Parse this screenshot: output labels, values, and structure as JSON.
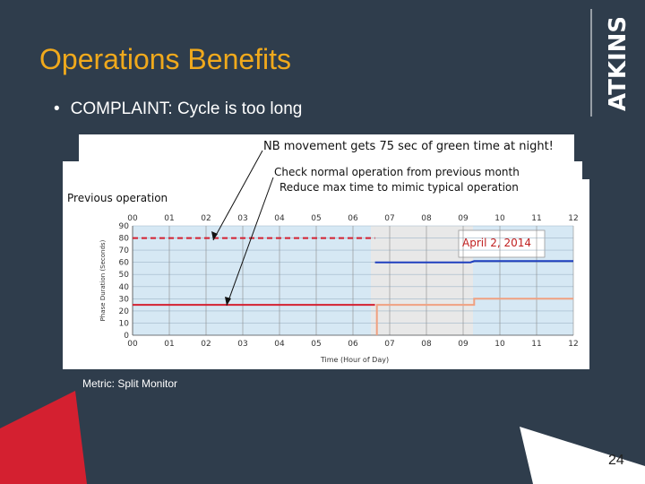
{
  "slide": {
    "title": "Operations Benefits",
    "bullet": "COMPLAINT: Cycle is too long",
    "caption": "Metric: Split Monitor",
    "page_number": "24",
    "brand": "ATKINS",
    "colors": {
      "background": "#2f3d4c",
      "title": "#f0a91c",
      "accent_red": "#d42030",
      "text": "#ffffff"
    }
  },
  "callouts": {
    "c1": "NB movement gets 75 sec of green time at night!",
    "c2": "Check normal operation from previous month",
    "c3": "Reduce max time to mimic typical operation",
    "panel_label": "Previous operation",
    "date_label": "April 2, 2014"
  },
  "chart_data": {
    "type": "scatter",
    "xlabel": "Time (Hour of Day)",
    "ylabel": "Phase Duration (Seconds)",
    "xlim": [
      0,
      12
    ],
    "ylim": [
      0,
      90
    ],
    "xticks": [
      "00",
      "01",
      "02",
      "03",
      "04",
      "05",
      "06",
      "07",
      "08",
      "09",
      "10",
      "11",
      "12"
    ],
    "yticks": [
      0,
      10,
      20,
      30,
      40,
      50,
      60,
      70,
      80,
      90
    ],
    "grid": true,
    "series": [
      {
        "color": "#d42030",
        "style": "dashed",
        "points": [
          [
            0.0,
            80
          ],
          [
            6.6,
            80
          ]
        ]
      },
      {
        "color": "#d42030",
        "style": "solid",
        "points": [
          [
            0.0,
            25
          ],
          [
            6.6,
            25
          ]
        ]
      },
      {
        "color": "#1f3fbf",
        "style": "solid",
        "points": [
          [
            6.6,
            60
          ],
          [
            9.2,
            60
          ],
          [
            9.3,
            61
          ],
          [
            12.0,
            61
          ]
        ]
      },
      {
        "color": "#f0a080",
        "style": "solid",
        "points": [
          [
            6.65,
            0
          ],
          [
            6.65,
            25
          ],
          [
            9.3,
            25
          ],
          [
            9.3,
            30
          ],
          [
            12.0,
            30
          ]
        ]
      }
    ]
  }
}
